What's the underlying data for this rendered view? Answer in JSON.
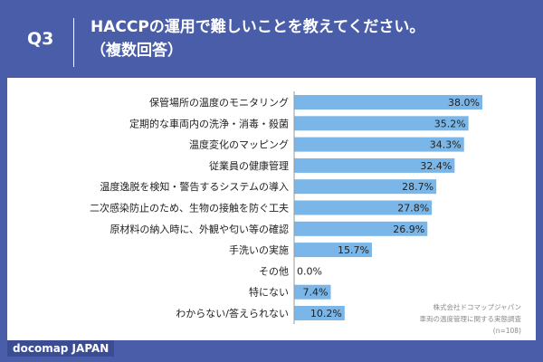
{
  "header": {
    "question_number": "Q3",
    "question_line1": "HACCPの運用で難しいことを教えてください。",
    "question_line2": "（複数回答）"
  },
  "chart_data": {
    "type": "bar",
    "orientation": "horizontal",
    "categories": [
      "保管場所の温度のモニタリング",
      "定期的な車両内の洗浄・消毒・殺菌",
      "温度変化のマッピング",
      "従業員の健康管理",
      "温度逸脱を検知・警告するシステムの導入",
      "二次感染防止のため、生物の接触を防ぐ工夫",
      "原材料の納入時に、外観や匂い等の確認",
      "手洗いの実施",
      "その他",
      "特にない",
      "わからない/答えられない"
    ],
    "values": [
      38.0,
      35.2,
      34.3,
      32.4,
      28.7,
      27.8,
      26.9,
      15.7,
      0.0,
      7.4,
      10.2
    ],
    "value_labels": [
      "38.0%",
      "35.2%",
      "34.3%",
      "32.4%",
      "28.7%",
      "27.8%",
      "26.9%",
      "15.7%",
      "0.0%",
      "7.4%",
      "10.2%"
    ],
    "xlim": [
      0,
      38.0
    ],
    "bar_color": "#7ab6e8",
    "grid": false
  },
  "source": {
    "line1": "株式会社ドコマップジャパン",
    "line2": "車両の温度管理に関する実態調査",
    "line3": "(n=108)"
  },
  "footer": {
    "brand": "docomap JAPAN"
  },
  "colors": {
    "background": "#4a5da8",
    "brand_bar": "#3a4c94"
  }
}
